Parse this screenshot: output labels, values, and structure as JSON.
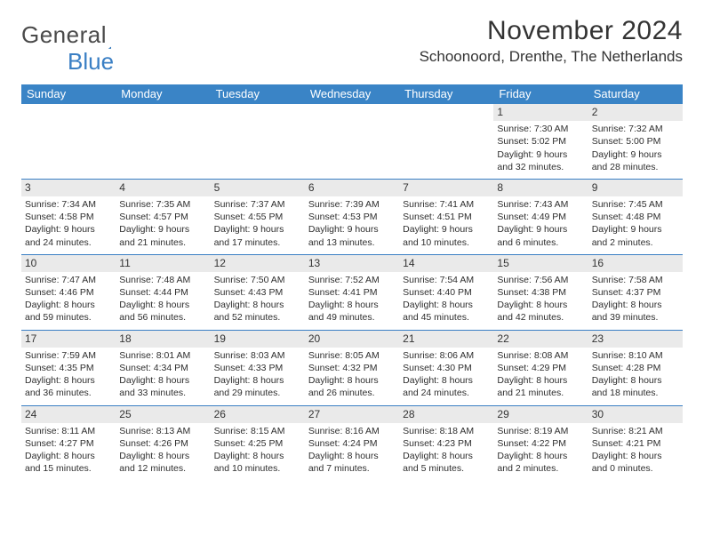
{
  "logo": {
    "word1": "General",
    "word2": "Blue"
  },
  "title": "November 2024",
  "location": "Schoonoord, Drenthe, The Netherlands",
  "colors": {
    "header_bar": "#3a84c6",
    "grey_strip": "#eaeaea",
    "rule": "#3a7fc4",
    "text": "#333333",
    "logo_blue": "#3a7fc4"
  },
  "typography": {
    "title_fontsize": 30,
    "location_fontsize": 17,
    "dayname_fontsize": 13,
    "cell_fontsize": 10.5,
    "daynum_fontsize": 12
  },
  "day_names": [
    "Sunday",
    "Monday",
    "Tuesday",
    "Wednesday",
    "Thursday",
    "Friday",
    "Saturday"
  ],
  "weeks": [
    [
      {
        "empty": true
      },
      {
        "empty": true
      },
      {
        "empty": true
      },
      {
        "empty": true
      },
      {
        "empty": true
      },
      {
        "n": "1",
        "sunrise": "Sunrise: 7:30 AM",
        "sunset": "Sunset: 5:02 PM",
        "daylight": "Daylight: 9 hours and 32 minutes."
      },
      {
        "n": "2",
        "sunrise": "Sunrise: 7:32 AM",
        "sunset": "Sunset: 5:00 PM",
        "daylight": "Daylight: 9 hours and 28 minutes."
      }
    ],
    [
      {
        "n": "3",
        "sunrise": "Sunrise: 7:34 AM",
        "sunset": "Sunset: 4:58 PM",
        "daylight": "Daylight: 9 hours and 24 minutes."
      },
      {
        "n": "4",
        "sunrise": "Sunrise: 7:35 AM",
        "sunset": "Sunset: 4:57 PM",
        "daylight": "Daylight: 9 hours and 21 minutes."
      },
      {
        "n": "5",
        "sunrise": "Sunrise: 7:37 AM",
        "sunset": "Sunset: 4:55 PM",
        "daylight": "Daylight: 9 hours and 17 minutes."
      },
      {
        "n": "6",
        "sunrise": "Sunrise: 7:39 AM",
        "sunset": "Sunset: 4:53 PM",
        "daylight": "Daylight: 9 hours and 13 minutes."
      },
      {
        "n": "7",
        "sunrise": "Sunrise: 7:41 AM",
        "sunset": "Sunset: 4:51 PM",
        "daylight": "Daylight: 9 hours and 10 minutes."
      },
      {
        "n": "8",
        "sunrise": "Sunrise: 7:43 AM",
        "sunset": "Sunset: 4:49 PM",
        "daylight": "Daylight: 9 hours and 6 minutes."
      },
      {
        "n": "9",
        "sunrise": "Sunrise: 7:45 AM",
        "sunset": "Sunset: 4:48 PM",
        "daylight": "Daylight: 9 hours and 2 minutes."
      }
    ],
    [
      {
        "n": "10",
        "sunrise": "Sunrise: 7:47 AM",
        "sunset": "Sunset: 4:46 PM",
        "daylight": "Daylight: 8 hours and 59 minutes."
      },
      {
        "n": "11",
        "sunrise": "Sunrise: 7:48 AM",
        "sunset": "Sunset: 4:44 PM",
        "daylight": "Daylight: 8 hours and 56 minutes."
      },
      {
        "n": "12",
        "sunrise": "Sunrise: 7:50 AM",
        "sunset": "Sunset: 4:43 PM",
        "daylight": "Daylight: 8 hours and 52 minutes."
      },
      {
        "n": "13",
        "sunrise": "Sunrise: 7:52 AM",
        "sunset": "Sunset: 4:41 PM",
        "daylight": "Daylight: 8 hours and 49 minutes."
      },
      {
        "n": "14",
        "sunrise": "Sunrise: 7:54 AM",
        "sunset": "Sunset: 4:40 PM",
        "daylight": "Daylight: 8 hours and 45 minutes."
      },
      {
        "n": "15",
        "sunrise": "Sunrise: 7:56 AM",
        "sunset": "Sunset: 4:38 PM",
        "daylight": "Daylight: 8 hours and 42 minutes."
      },
      {
        "n": "16",
        "sunrise": "Sunrise: 7:58 AM",
        "sunset": "Sunset: 4:37 PM",
        "daylight": "Daylight: 8 hours and 39 minutes."
      }
    ],
    [
      {
        "n": "17",
        "sunrise": "Sunrise: 7:59 AM",
        "sunset": "Sunset: 4:35 PM",
        "daylight": "Daylight: 8 hours and 36 minutes."
      },
      {
        "n": "18",
        "sunrise": "Sunrise: 8:01 AM",
        "sunset": "Sunset: 4:34 PM",
        "daylight": "Daylight: 8 hours and 33 minutes."
      },
      {
        "n": "19",
        "sunrise": "Sunrise: 8:03 AM",
        "sunset": "Sunset: 4:33 PM",
        "daylight": "Daylight: 8 hours and 29 minutes."
      },
      {
        "n": "20",
        "sunrise": "Sunrise: 8:05 AM",
        "sunset": "Sunset: 4:32 PM",
        "daylight": "Daylight: 8 hours and 26 minutes."
      },
      {
        "n": "21",
        "sunrise": "Sunrise: 8:06 AM",
        "sunset": "Sunset: 4:30 PM",
        "daylight": "Daylight: 8 hours and 24 minutes."
      },
      {
        "n": "22",
        "sunrise": "Sunrise: 8:08 AM",
        "sunset": "Sunset: 4:29 PM",
        "daylight": "Daylight: 8 hours and 21 minutes."
      },
      {
        "n": "23",
        "sunrise": "Sunrise: 8:10 AM",
        "sunset": "Sunset: 4:28 PM",
        "daylight": "Daylight: 8 hours and 18 minutes."
      }
    ],
    [
      {
        "n": "24",
        "sunrise": "Sunrise: 8:11 AM",
        "sunset": "Sunset: 4:27 PM",
        "daylight": "Daylight: 8 hours and 15 minutes."
      },
      {
        "n": "25",
        "sunrise": "Sunrise: 8:13 AM",
        "sunset": "Sunset: 4:26 PM",
        "daylight": "Daylight: 8 hours and 12 minutes."
      },
      {
        "n": "26",
        "sunrise": "Sunrise: 8:15 AM",
        "sunset": "Sunset: 4:25 PM",
        "daylight": "Daylight: 8 hours and 10 minutes."
      },
      {
        "n": "27",
        "sunrise": "Sunrise: 8:16 AM",
        "sunset": "Sunset: 4:24 PM",
        "daylight": "Daylight: 8 hours and 7 minutes."
      },
      {
        "n": "28",
        "sunrise": "Sunrise: 8:18 AM",
        "sunset": "Sunset: 4:23 PM",
        "daylight": "Daylight: 8 hours and 5 minutes."
      },
      {
        "n": "29",
        "sunrise": "Sunrise: 8:19 AM",
        "sunset": "Sunset: 4:22 PM",
        "daylight": "Daylight: 8 hours and 2 minutes."
      },
      {
        "n": "30",
        "sunrise": "Sunrise: 8:21 AM",
        "sunset": "Sunset: 4:21 PM",
        "daylight": "Daylight: 8 hours and 0 minutes."
      }
    ]
  ]
}
